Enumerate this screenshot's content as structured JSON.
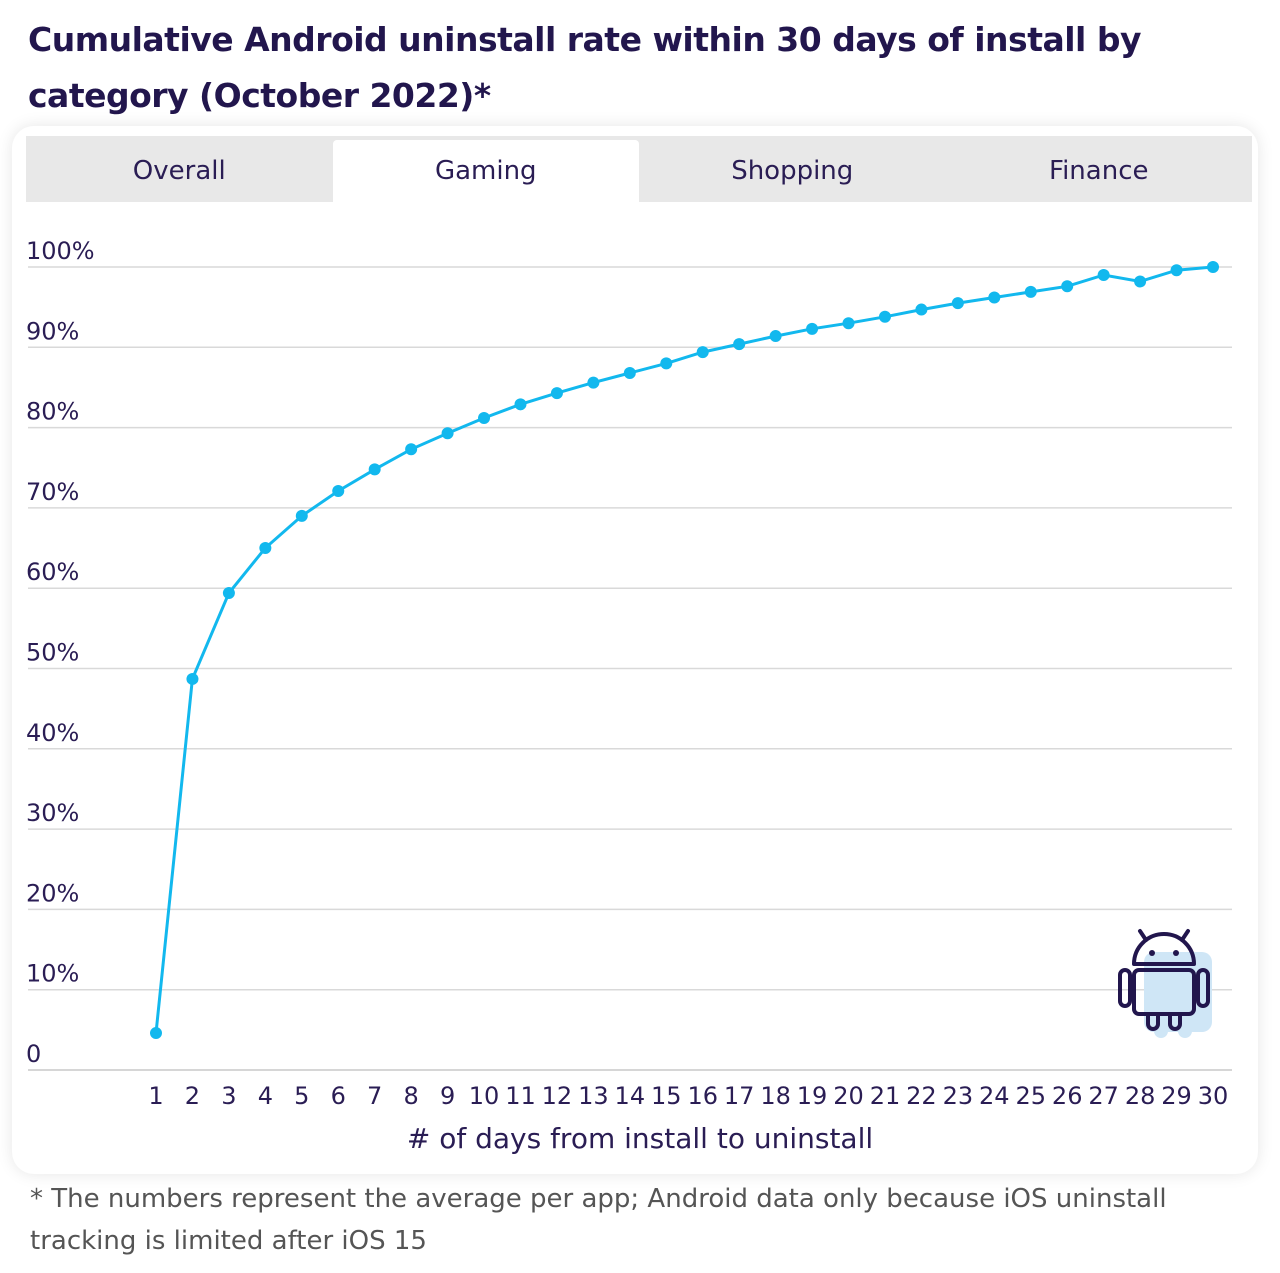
{
  "title": "Cumulative Android uninstall rate within 30 days of install by category (October 2022)*",
  "tabs": [
    {
      "label": "Overall",
      "active": false
    },
    {
      "label": "Gaming",
      "active": true
    },
    {
      "label": "Shopping",
      "active": false
    },
    {
      "label": "Finance",
      "active": false
    }
  ],
  "footnote": "* The numbers represent the average per app; Android data only because iOS uninstall tracking is limited after iOS 15",
  "icon": "android-robot-icon",
  "colors": {
    "line": "#12b8ee",
    "title": "#22164d",
    "text": "#2a1d54",
    "grid": "#d9d9d9",
    "tab_bg": "#e8e8e8"
  },
  "chart_data": {
    "type": "line",
    "xlabel": "# of days from install to uninstall",
    "ylabel": "",
    "x": [
      1,
      2,
      3,
      4,
      5,
      6,
      7,
      8,
      9,
      10,
      11,
      12,
      13,
      14,
      15,
      16,
      17,
      18,
      19,
      20,
      21,
      22,
      23,
      24,
      25,
      26,
      27,
      28,
      29,
      30
    ],
    "series": [
      {
        "values": [
          4.6,
          48.7,
          59.4,
          65.0,
          69.0,
          72.1,
          74.8,
          77.3,
          79.3,
          81.2,
          82.9,
          84.3,
          85.6,
          86.8,
          88.0,
          89.4,
          90.4,
          91.4,
          92.3,
          93.0,
          93.8,
          94.7,
          95.5,
          96.2,
          96.9,
          97.6,
          99.0,
          98.2,
          99.6,
          100.0
        ]
      }
    ],
    "yticks": [
      "0",
      "10%",
      "20%",
      "30%",
      "40%",
      "50%",
      "60%",
      "70%",
      "80%",
      "90%",
      "100%"
    ],
    "ylim": [
      0,
      100
    ],
    "xlim": [
      1,
      30
    ],
    "grid": true,
    "legend": "none"
  }
}
